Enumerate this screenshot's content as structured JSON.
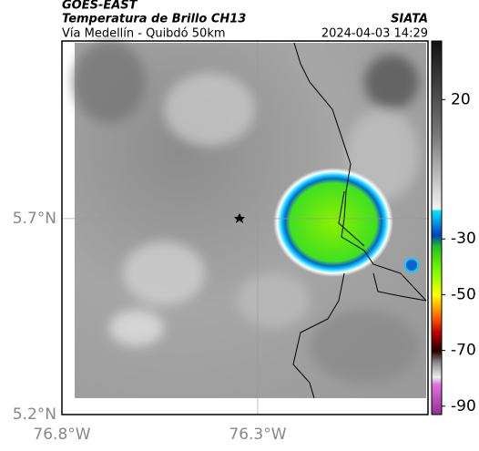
{
  "header": {
    "source": "GOES-EAST",
    "title": "Temperatura de Brillo CH13",
    "subtitle": "Vía Medellín - Quibdó 50km",
    "agency": "SIATA",
    "timestamp": "2024-04-03 14:29"
  },
  "map": {
    "latlim": [
      5.2,
      6.153
    ],
    "lonlim": [
      -76.8,
      -75.865
    ],
    "latticks": [
      {
        "value": 5.7,
        "label": "5.7°N"
      },
      {
        "value": 5.2,
        "label": "5.2°N"
      }
    ],
    "lonticks": [
      {
        "value": -76.8,
        "label": "76.8°W"
      },
      {
        "value": -76.3,
        "label": "76.3°W"
      }
    ]
  },
  "colorbar": {
    "lim": [
      -93,
      41
    ],
    "ticks": [
      20,
      -30,
      -50,
      -70,
      -90
    ]
  }
}
